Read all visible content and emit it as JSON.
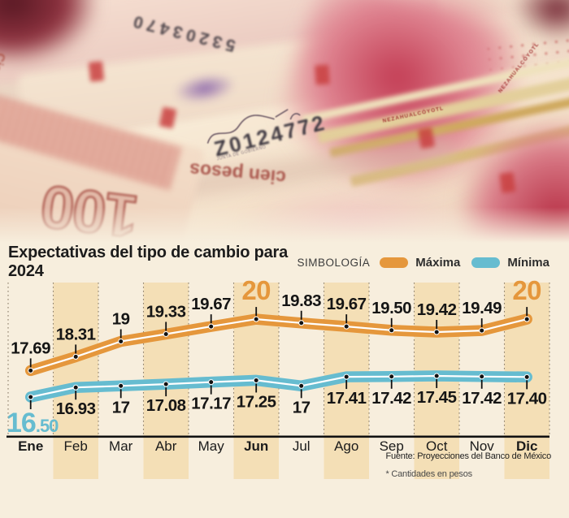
{
  "colors": {
    "maxima": "#E5973C",
    "minima": "#66BCD0",
    "band": "#F4DFB6",
    "background": "#F7EEDD",
    "axis": "#111111",
    "label": "#151515",
    "grid": "#8C7F6B"
  },
  "photo": {
    "alt": "Primer plano de billetes de cien pesos mexicanos",
    "texts": {
      "serial_center": "Z0124772",
      "serial_top": "53203470",
      "cien_pesos": "cien pesos",
      "cien_vertical": "Cien pesos",
      "denomination": "100",
      "nezahualcoyotl": "NEZAHUALCÓYOTL",
      "junta": "JUNTA DE GOBIERNO"
    }
  },
  "chart_data": {
    "type": "line",
    "title": "Expectativas del tipo de cambio para 2024",
    "legend_title": "SIMBOLOGÍA",
    "legend_position": "top-right",
    "units": "pesos",
    "xlabel": "",
    "ylabel": "",
    "ylim": [
      16.5,
      20
    ],
    "grid": "vertical-dashed",
    "categories": [
      "Ene",
      "Feb",
      "Mar",
      "Abr",
      "May",
      "Jun",
      "Jul",
      "Ago",
      "Sep",
      "Oct",
      "Nov",
      "Dic"
    ],
    "bold_categories": [
      "Ene",
      "Jun",
      "Dic"
    ],
    "shaded_columns": [
      "Feb",
      "Abr",
      "Jun",
      "Ago",
      "Oct",
      "Dic"
    ],
    "series": [
      {
        "name": "Máxima",
        "color": "#E5973C",
        "values": [
          17.69,
          18.31,
          19,
          19.33,
          19.67,
          20,
          19.83,
          19.67,
          19.5,
          19.42,
          19.49,
          20
        ],
        "labels": [
          "17.69",
          "18.31",
          "19",
          "19.33",
          "19.67",
          "20",
          "19.83",
          "19.67",
          "19.50",
          "19.42",
          "19.49",
          "20"
        ],
        "emphasized_labels": [
          5,
          11
        ],
        "label_side": "above"
      },
      {
        "name": "Mínima",
        "color": "#66BCD0",
        "values": [
          16.5,
          16.93,
          17,
          17.08,
          17.17,
          17.25,
          17,
          17.41,
          17.42,
          17.45,
          17.42,
          17.4
        ],
        "labels": [
          "16.50",
          "16.93",
          "17",
          "17.08",
          "17.17",
          "17.25",
          "17",
          "17.41",
          "17.42",
          "17.45",
          "17.42",
          "17.40"
        ],
        "emphasized_labels": [
          0
        ],
        "label_side": "below"
      }
    ]
  },
  "footer": {
    "source": "Fuente: Proyecciones del Banco de México",
    "footnote": "* Cantidades en pesos"
  }
}
